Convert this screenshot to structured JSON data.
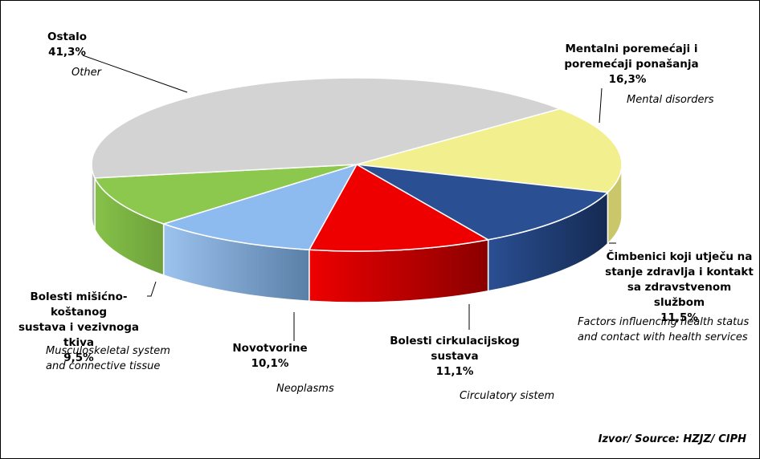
{
  "chart_data": {
    "type": "pie",
    "style": "3d-exploded",
    "source": "Izvor/ Source: HZJZ/ CIPH",
    "slices": [
      {
        "label": "Mentalni poremećaji i poremećaji ponašanja",
        "value": 16.3,
        "value_label": "16,3%",
        "label_en": "Mental disorders",
        "color": "#F2F08E"
      },
      {
        "label": "Čimbenici koji utječu na stanje zdravlja i kontakt sa zdravstvenom službom",
        "value": 11.5,
        "value_label": "11,5%",
        "label_en": "Factors influencing health status and contact with health services",
        "color": "#2A4F93"
      },
      {
        "label": "Bolesti cirkulacijskog sustava",
        "value": 11.1,
        "value_label": "11,1%",
        "label_en": "Circulatory sistem",
        "color": "#EE0000"
      },
      {
        "label": "Novotvorine",
        "value": 10.1,
        "value_label": "10,1%",
        "label_en": "Neoplasms",
        "color": "#8EBBEF"
      },
      {
        "label": "Bolesti mišićno-koštanog sustava i vezivnoga tkiva",
        "value": 9.5,
        "value_label": "9,5%",
        "label_en": "Musculoskeletal system and connective tissue",
        "color": "#8CC84E"
      },
      {
        "label": "Ostalo",
        "value": 41.3,
        "value_label": "41,3%",
        "label_en": "Other",
        "color": "#D3D3D3"
      }
    ]
  },
  "labels": {
    "mental": {
      "line1": "Mentalni poremećaji i",
      "line2": "poremećaji ponašanja",
      "value": "16,3%",
      "en": "Mental disorders"
    },
    "factors": {
      "line1": "Čimbenici koji utječu na",
      "line2": "stanje zdravlja i kontakt",
      "line3": "sa zdravstvenom službom",
      "value": "11,5%",
      "en1": "Factors influencing health status",
      "en2": "and contact with health services"
    },
    "circulatory": {
      "line1": "Bolesti cirkulacijskog",
      "line2": "sustava",
      "value": "11,1%",
      "en": "Circulatory sistem"
    },
    "neoplasms": {
      "line1": "Novotvorine",
      "value": "10,1%",
      "en": "Neoplasms"
    },
    "musculo": {
      "line1": "Bolesti mišićno-koštanog",
      "line2": "sustava i vezivnoga tkiva",
      "value": "9,5%",
      "en1": "Musculoskeletal system",
      "en2": "and connective tissue"
    },
    "other": {
      "line1": "Ostalo",
      "value": "41,3%",
      "en": "Other"
    }
  }
}
